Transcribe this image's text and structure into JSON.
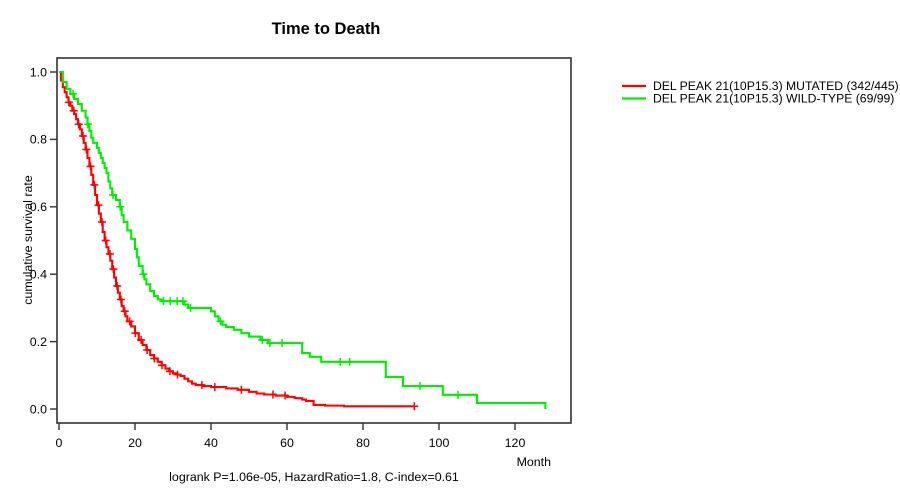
{
  "chart_data": {
    "type": "line",
    "subtype": "kaplan-meier-step-survival",
    "title": "Time to Death",
    "xlabel": "Month",
    "ylabel": "cumulative survival rate",
    "annotation": "logrank P=1.06e-05, HazardRatio=1.8, C-index=0.61",
    "xlim": [
      0,
      135
    ],
    "ylim": [
      0.0,
      1.0
    ],
    "x_ticks": [
      0,
      20,
      40,
      60,
      80,
      100,
      120
    ],
    "y_ticks": [
      "0.0",
      "0.2",
      "0.4",
      "0.6",
      "0.8",
      "1.0"
    ],
    "grid": false,
    "legend_position": "right-outside-top",
    "frame_color": "#333333",
    "series": [
      {
        "name": "DEL PEAK 21(10P15.3) MUTATED (342/445)",
        "color": "#ff0000",
        "end_month": 93.5,
        "steps": [
          [
            0,
            1.0
          ],
          [
            0.5,
            0.975
          ],
          [
            1,
            0.955
          ],
          [
            1.5,
            0.94
          ],
          [
            2,
            0.925
          ],
          [
            2.5,
            0.91
          ],
          [
            3,
            0.9
          ],
          [
            3.5,
            0.885
          ],
          [
            4,
            0.875
          ],
          [
            4.5,
            0.86
          ],
          [
            5,
            0.845
          ],
          [
            5.5,
            0.83
          ],
          [
            6,
            0.81
          ],
          [
            6.5,
            0.79
          ],
          [
            7,
            0.77
          ],
          [
            7.5,
            0.745
          ],
          [
            8,
            0.72
          ],
          [
            8.5,
            0.695
          ],
          [
            9,
            0.665
          ],
          [
            9.5,
            0.635
          ],
          [
            10,
            0.605
          ],
          [
            10.5,
            0.58
          ],
          [
            11,
            0.555
          ],
          [
            11.5,
            0.525
          ],
          [
            12,
            0.5
          ],
          [
            12.5,
            0.48
          ],
          [
            13,
            0.46
          ],
          [
            13.5,
            0.44
          ],
          [
            14,
            0.415
          ],
          [
            14.5,
            0.39
          ],
          [
            15,
            0.365
          ],
          [
            15.5,
            0.345
          ],
          [
            16,
            0.325
          ],
          [
            16.5,
            0.305
          ],
          [
            17,
            0.29
          ],
          [
            17.5,
            0.275
          ],
          [
            18,
            0.26
          ],
          [
            19,
            0.245
          ],
          [
            20,
            0.225
          ],
          [
            21,
            0.205
          ],
          [
            22,
            0.19
          ],
          [
            23,
            0.175
          ],
          [
            24,
            0.16
          ],
          [
            25,
            0.15
          ],
          [
            26,
            0.14
          ],
          [
            27,
            0.13
          ],
          [
            28,
            0.12
          ],
          [
            29,
            0.112
          ],
          [
            30,
            0.106
          ],
          [
            31,
            0.102
          ],
          [
            32,
            0.098
          ],
          [
            33,
            0.09
          ],
          [
            34,
            0.082
          ],
          [
            35,
            0.075
          ],
          [
            36,
            0.071
          ],
          [
            38,
            0.068
          ],
          [
            40,
            0.065
          ],
          [
            44,
            0.061
          ],
          [
            47,
            0.057
          ],
          [
            50,
            0.051
          ],
          [
            52,
            0.046
          ],
          [
            54,
            0.043
          ],
          [
            57,
            0.04
          ],
          [
            60,
            0.036
          ],
          [
            62,
            0.032
          ],
          [
            64,
            0.028
          ],
          [
            65,
            0.024
          ],
          [
            67,
            0.012
          ],
          [
            70,
            0.01
          ],
          [
            75,
            0.008
          ]
        ],
        "censor_months": [
          2.6,
          3.9,
          5.2,
          6.3,
          7.2,
          8.3,
          9.3,
          10.4,
          11.3,
          12.3,
          13.4,
          14.3,
          15.3,
          16.3,
          17.3,
          18.6,
          20.1,
          21.6,
          23.2,
          25.1,
          27.1,
          29.2,
          31.2,
          37.6,
          41,
          48,
          56.3,
          59.5,
          93.5
        ]
      },
      {
        "name": "DEL PEAK 21(10P15.3) WILD-TYPE (69/99)",
        "color": "#00ee00",
        "end_month": 128,
        "steps": [
          [
            0,
            1.0
          ],
          [
            1,
            0.97
          ],
          [
            2,
            0.95
          ],
          [
            3,
            0.935
          ],
          [
            4,
            0.92
          ],
          [
            5,
            0.905
          ],
          [
            6,
            0.885
          ],
          [
            7,
            0.865
          ],
          [
            7.5,
            0.845
          ],
          [
            8,
            0.825
          ],
          [
            8.5,
            0.805
          ],
          [
            9,
            0.79
          ],
          [
            10,
            0.775
          ],
          [
            10.5,
            0.76
          ],
          [
            11,
            0.745
          ],
          [
            11.5,
            0.73
          ],
          [
            12,
            0.715
          ],
          [
            12.5,
            0.7
          ],
          [
            13,
            0.675
          ],
          [
            13.5,
            0.655
          ],
          [
            14,
            0.635
          ],
          [
            15,
            0.62
          ],
          [
            16,
            0.6
          ],
          [
            16.5,
            0.575
          ],
          [
            17,
            0.555
          ],
          [
            18,
            0.53
          ],
          [
            19,
            0.505
          ],
          [
            20,
            0.475
          ],
          [
            20.5,
            0.45
          ],
          [
            21,
            0.425
          ],
          [
            22,
            0.4
          ],
          [
            22.5,
            0.385
          ],
          [
            23,
            0.37
          ],
          [
            24,
            0.35
          ],
          [
            25,
            0.335
          ],
          [
            26,
            0.325
          ],
          [
            27,
            0.32
          ],
          [
            33,
            0.31
          ],
          [
            34,
            0.3
          ],
          [
            40,
            0.29
          ],
          [
            41,
            0.275
          ],
          [
            42,
            0.26
          ],
          [
            43,
            0.25
          ],
          [
            44,
            0.243
          ],
          [
            46,
            0.235
          ],
          [
            48,
            0.225
          ],
          [
            50,
            0.215
          ],
          [
            53,
            0.205
          ],
          [
            55,
            0.196
          ],
          [
            64,
            0.166
          ],
          [
            66,
            0.155
          ],
          [
            69,
            0.14
          ],
          [
            86,
            0.095
          ],
          [
            90.5,
            0.068
          ],
          [
            101,
            0.042
          ],
          [
            110,
            0.018
          ],
          [
            128,
            0.0
          ]
        ],
        "censor_months": [
          3.7,
          7.6,
          14.2,
          16.1,
          22.2,
          27.5,
          29.3,
          31.1,
          32.6,
          34.6,
          42.5,
          53.5,
          55.5,
          58.7,
          74,
          76.5,
          95,
          105
        ]
      }
    ]
  }
}
